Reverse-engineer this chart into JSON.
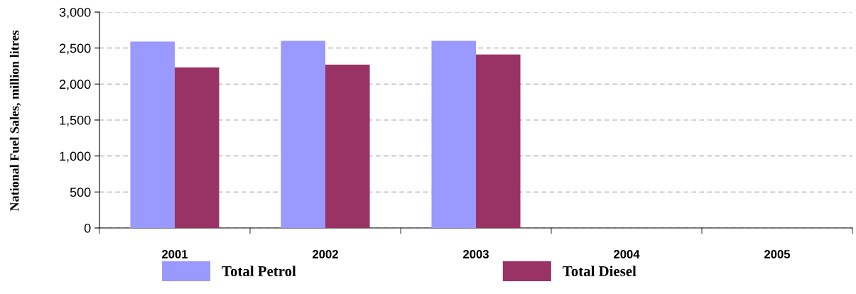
{
  "chart_data": {
    "type": "bar",
    "ylabel": "National Fuel Sales, million litres",
    "categories": [
      "2001",
      "2002",
      "2003",
      "2004",
      "2005"
    ],
    "series": [
      {
        "name": "Total Petrol",
        "color": "#9999ff",
        "values": [
          2590,
          2600,
          2600,
          null,
          null
        ]
      },
      {
        "name": "Total Diesel",
        "color": "#993366",
        "values": [
          2230,
          2270,
          2410,
          null,
          null
        ]
      }
    ],
    "ylim": [
      0,
      3000
    ],
    "yticks": [
      {
        "value": 0,
        "label": "0"
      },
      {
        "value": 500,
        "label": "500"
      },
      {
        "value": 1000,
        "label": "1,000"
      },
      {
        "value": 1500,
        "label": "1,500"
      },
      {
        "value": 2000,
        "label": "2,000"
      },
      {
        "value": 2500,
        "label": "2,500"
      },
      {
        "value": 3000,
        "label": "3,000"
      }
    ],
    "grid": "y",
    "legend": "bottom"
  }
}
